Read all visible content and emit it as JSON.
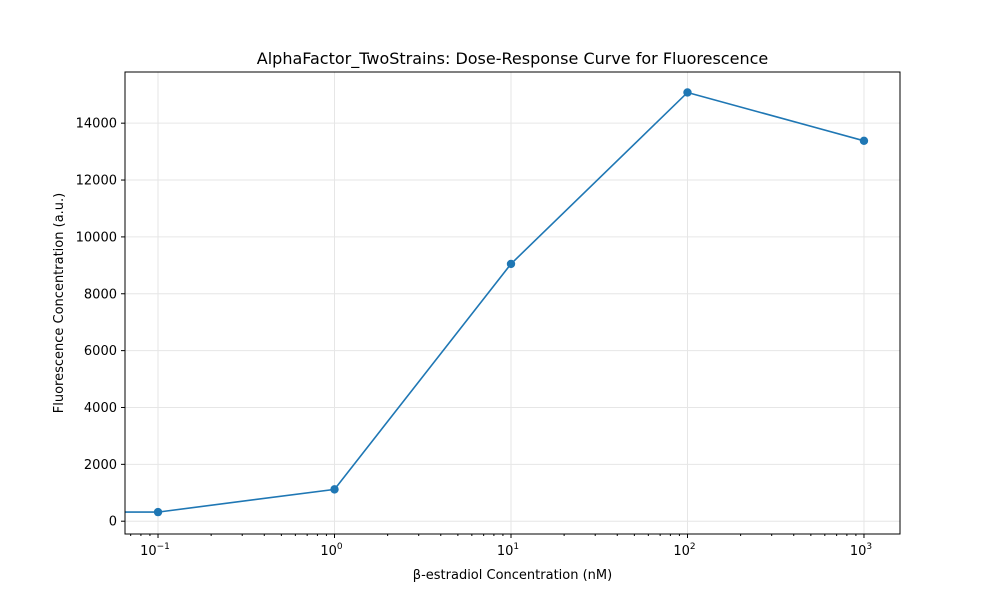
{
  "chart_data": {
    "type": "line",
    "title": "AlphaFactor_TwoStrains: Dose-Response Curve for Fluorescence",
    "xlabel": "β-estradiol Concentration (nM)",
    "ylabel": "Fluorescence Concentration (a.u.)",
    "x_scale": "log",
    "xlim": [
      0.065,
      1600
    ],
    "ylim": [
      -450,
      15800
    ],
    "x_ticks": [
      {
        "value": 0.1,
        "base": "10",
        "exp": "−1"
      },
      {
        "value": 1,
        "base": "10",
        "exp": "0"
      },
      {
        "value": 10,
        "base": "10",
        "exp": "1"
      },
      {
        "value": 100,
        "base": "10",
        "exp": "2"
      },
      {
        "value": 1000,
        "base": "10",
        "exp": "3"
      }
    ],
    "y_ticks": [
      0,
      2000,
      4000,
      6000,
      8000,
      10000,
      12000,
      14000
    ],
    "grid": true,
    "series": [
      {
        "color": "#1f77b4",
        "x": [
          0,
          0.1,
          1,
          10,
          100,
          1000
        ],
        "y": [
          320,
          320,
          1120,
          9050,
          15080,
          13380
        ],
        "marker_visible": [
          false,
          true,
          true,
          true,
          true,
          true
        ]
      }
    ]
  }
}
